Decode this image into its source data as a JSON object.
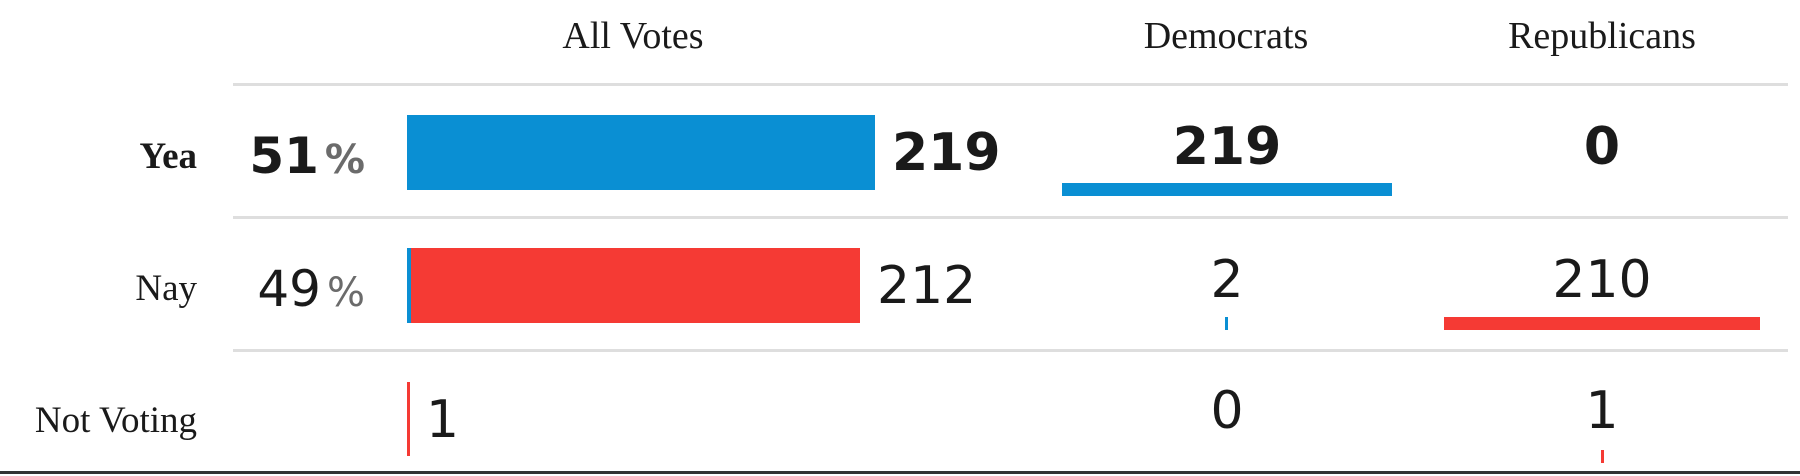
{
  "columns": {
    "all": "All Votes",
    "dem": "Democrats",
    "rep": "Republicans"
  },
  "rows": [
    {
      "label": "Yea",
      "percent": "51",
      "percent_sign": "%",
      "total": "219",
      "dem": "219",
      "rep": "0"
    },
    {
      "label": "Nay",
      "percent": "49",
      "percent_sign": "%",
      "total": "212",
      "dem": "2",
      "rep": "210"
    },
    {
      "label": "Not Voting",
      "percent": "",
      "percent_sign": "",
      "total": "1",
      "dem": "0",
      "rep": "1"
    }
  ],
  "colors": {
    "democrat": "#0a8fd3",
    "republican": "#f53a34",
    "text": "#1a1a1a",
    "muted": "#6b6b6b",
    "rule": "#dedede"
  },
  "chart_data": {
    "type": "bar",
    "categories": [
      "Yea",
      "Nay",
      "Not Voting"
    ],
    "series": [
      {
        "name": "Democrats",
        "values": [
          219,
          2,
          0
        ]
      },
      {
        "name": "Republicans",
        "values": [
          0,
          210,
          1
        ]
      }
    ],
    "totals": [
      219,
      212,
      1
    ],
    "percents": [
      51,
      49,
      null
    ]
  }
}
